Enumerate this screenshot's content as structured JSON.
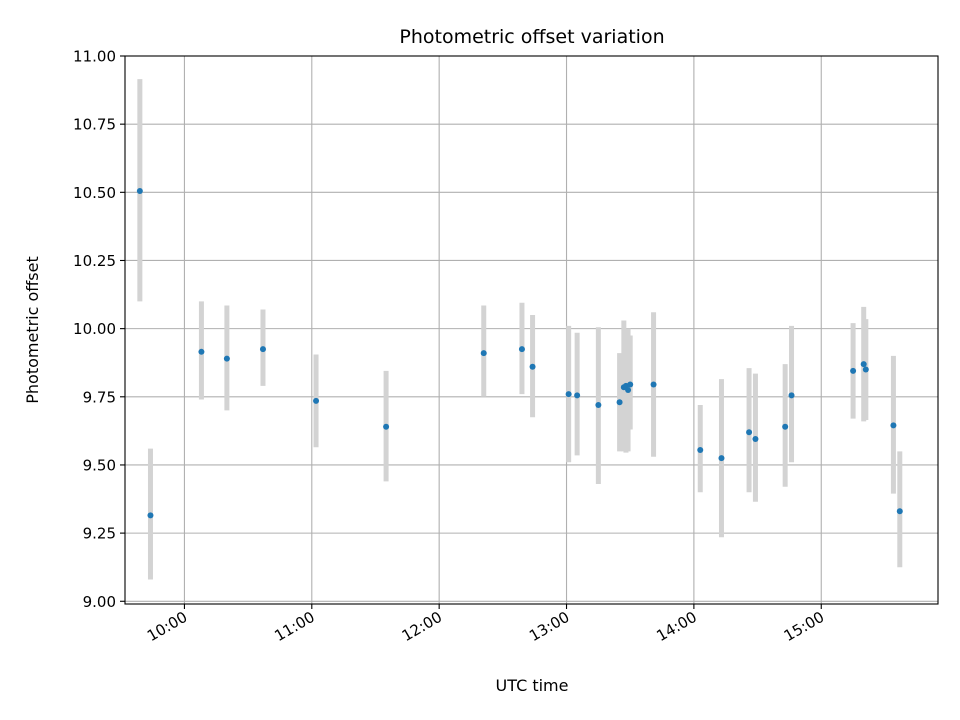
{
  "chart_data": {
    "type": "scatter",
    "title": "Photometric offset variation",
    "xlabel": "UTC time",
    "ylabel": "Photometric offset",
    "grid": true,
    "x_axis_type": "time",
    "xlim": [
      "09:32",
      "15:55"
    ],
    "ylim": [
      8.99,
      11.0
    ],
    "yticks": [
      9.0,
      9.25,
      9.5,
      9.75,
      10.0,
      10.25,
      10.5,
      10.75,
      11.0
    ],
    "ytick_labels": [
      "9.00",
      "9.25",
      "9.50",
      "9.75",
      "10.00",
      "10.25",
      "10.50",
      "10.75",
      "11.00"
    ],
    "xticks": [
      "10:00",
      "11:00",
      "12:00",
      "13:00",
      "14:00",
      "15:00"
    ],
    "xtick_labels": [
      "10:00",
      "11:00",
      "12:00",
      "13:00",
      "14:00",
      "15:00"
    ],
    "point_color": "#1f77b4",
    "errorbar_color": "#d3d3d3",
    "points": [
      {
        "t": "09:39",
        "y": 10.505,
        "lo": 10.1,
        "hi": 10.915
      },
      {
        "t": "09:44",
        "y": 9.315,
        "lo": 9.08,
        "hi": 9.56
      },
      {
        "t": "10:08",
        "y": 9.915,
        "lo": 9.74,
        "hi": 10.1
      },
      {
        "t": "10:20",
        "y": 9.89,
        "lo": 9.7,
        "hi": 10.085
      },
      {
        "t": "10:37",
        "y": 9.925,
        "lo": 9.79,
        "hi": 10.07
      },
      {
        "t": "11:02",
        "y": 9.735,
        "lo": 9.565,
        "hi": 9.905
      },
      {
        "t": "11:35",
        "y": 9.64,
        "lo": 9.44,
        "hi": 9.845
      },
      {
        "t": "12:21",
        "y": 9.91,
        "lo": 9.75,
        "hi": 10.085
      },
      {
        "t": "12:39",
        "y": 9.925,
        "lo": 9.76,
        "hi": 10.095
      },
      {
        "t": "12:44",
        "y": 9.86,
        "lo": 9.675,
        "hi": 10.05
      },
      {
        "t": "13:01",
        "y": 9.76,
        "lo": 9.51,
        "hi": 10.01
      },
      {
        "t": "13:05",
        "y": 9.755,
        "lo": 9.535,
        "hi": 9.985
      },
      {
        "t": "13:15",
        "y": 9.72,
        "lo": 9.43,
        "hi": 10.005
      },
      {
        "t": "13:25",
        "y": 9.73,
        "lo": 9.55,
        "hi": 9.91
      },
      {
        "t": "13:27",
        "y": 9.785,
        "lo": 9.55,
        "hi": 10.03
      },
      {
        "t": "13:28",
        "y": 9.79,
        "lo": 9.545,
        "hi": 9.99
      },
      {
        "t": "13:29",
        "y": 9.775,
        "lo": 9.55,
        "hi": 10.0
      },
      {
        "t": "13:30",
        "y": 9.795,
        "lo": 9.63,
        "hi": 9.975
      },
      {
        "t": "13:41",
        "y": 9.795,
        "lo": 9.53,
        "hi": 10.06
      },
      {
        "t": "14:03",
        "y": 9.555,
        "lo": 9.4,
        "hi": 9.72
      },
      {
        "t": "14:13",
        "y": 9.525,
        "lo": 9.235,
        "hi": 9.815
      },
      {
        "t": "14:26",
        "y": 9.62,
        "lo": 9.4,
        "hi": 9.855
      },
      {
        "t": "14:29",
        "y": 9.595,
        "lo": 9.365,
        "hi": 9.835
      },
      {
        "t": "14:43",
        "y": 9.64,
        "lo": 9.42,
        "hi": 9.87
      },
      {
        "t": "14:46",
        "y": 9.755,
        "lo": 9.51,
        "hi": 10.01
      },
      {
        "t": "15:15",
        "y": 9.845,
        "lo": 9.67,
        "hi": 10.02
      },
      {
        "t": "15:20",
        "y": 9.87,
        "lo": 9.66,
        "hi": 10.08
      },
      {
        "t": "15:21",
        "y": 9.85,
        "lo": 9.665,
        "hi": 10.035
      },
      {
        "t": "15:34",
        "y": 9.645,
        "lo": 9.395,
        "hi": 9.9
      },
      {
        "t": "15:37",
        "y": 9.33,
        "lo": 9.125,
        "hi": 9.55
      }
    ]
  }
}
